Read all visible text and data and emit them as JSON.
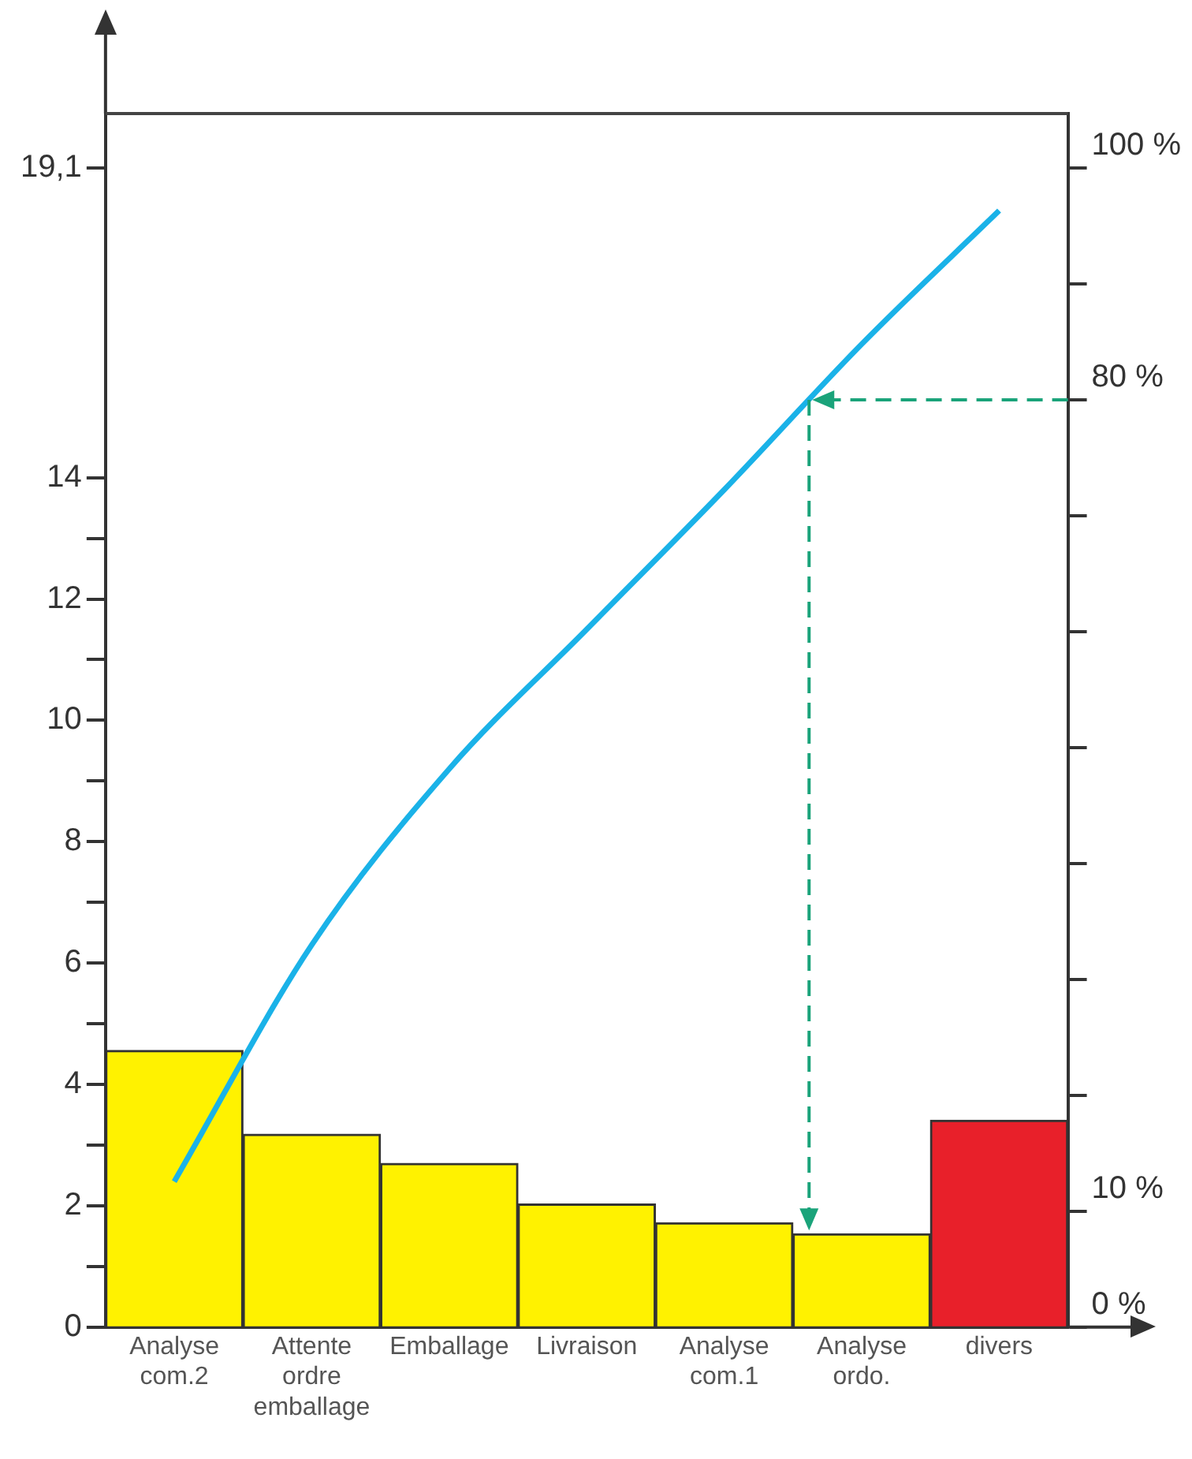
{
  "chart_data": {
    "type": "bar",
    "categories": [
      "Analyse com.2",
      "Attente ordre emballage",
      "Emballage",
      "Livraison",
      "Analyse com.1",
      "Analyse ordo.",
      "divers"
    ],
    "series": [
      {
        "colors": [
          "#fff200",
          "#fff200",
          "#fff200",
          "#fff200",
          "#fff200",
          "#fff200",
          "#e8202a"
        ],
        "values": [
          4.56,
          3.18,
          2.7,
          2.03,
          1.72,
          1.54,
          3.41
        ]
      },
      {
        "type": "line",
        "color": "#1ab2e8",
        "values": [
          2.4,
          6.3,
          9.2,
          11.5,
          13.8,
          16.2,
          18.4
        ]
      }
    ],
    "ylim": [
      0,
      20
    ],
    "yticks": [
      0,
      {
        "value": 1,
        "label": null
      },
      2,
      {
        "value": 3,
        "label": null
      },
      4,
      {
        "value": 5,
        "label": null
      },
      6,
      {
        "value": 7,
        "label": null
      },
      8,
      {
        "value": 9,
        "label": null
      },
      10,
      {
        "value": 11,
        "label": null
      },
      12,
      {
        "value": 13,
        "label": null
      },
      14,
      {
        "value": 19.1,
        "label": "19,1"
      }
    ],
    "y2lim": [
      0,
      104.7
    ],
    "y2ticks": [
      {
        "value": 0,
        "label": "0 %"
      },
      {
        "value": 10,
        "label": "10 %"
      },
      {
        "value": 20,
        "label": null
      },
      {
        "value": 30,
        "label": null
      },
      {
        "value": 40,
        "label": null
      },
      {
        "value": 50,
        "label": null
      },
      {
        "value": 60,
        "label": null
      },
      {
        "value": 70,
        "label": null
      },
      {
        "value": 80,
        "label": "80 %"
      },
      {
        "value": 90,
        "label": null
      },
      {
        "value": 100,
        "label": "100 %"
      }
    ],
    "ref_lines": [
      {
        "axis": "y2",
        "value": 80,
        "color": "#1aa37a",
        "line_style": "dashed"
      }
    ],
    "grid": false,
    "legend": false,
    "marker": "none"
  }
}
